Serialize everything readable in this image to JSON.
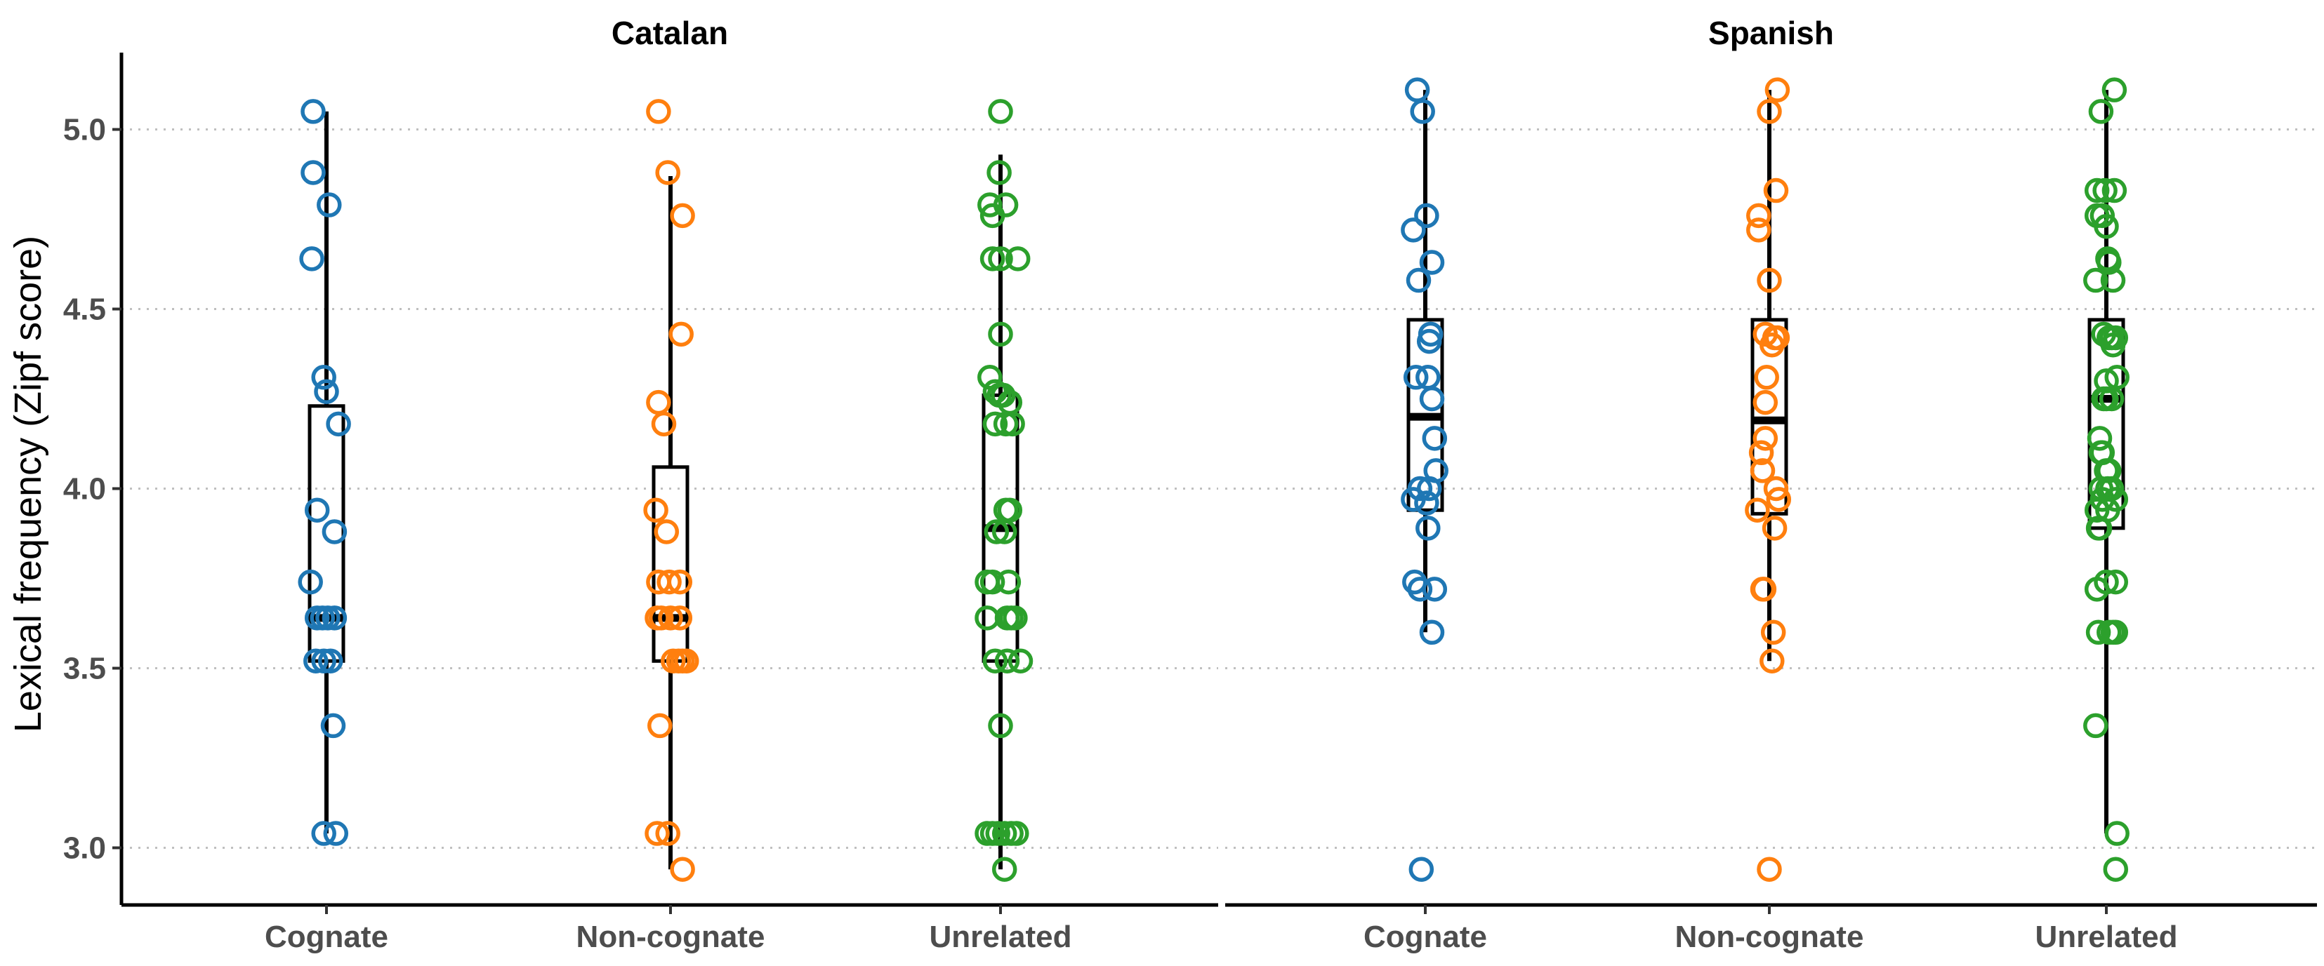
{
  "chart_data": {
    "type": "scatter",
    "ylabel": "Lexical frequency (Zipf score)",
    "ylim": [
      2.92,
      5.22
    ],
    "yticks": [
      "3.0",
      "3.5",
      "4.0",
      "4.5",
      "5.0"
    ],
    "ytick_values": [
      3.0,
      3.5,
      4.0,
      4.5,
      5.0
    ],
    "grid": "horizontal dotted",
    "categories": [
      "Cognate",
      "Non-cognate",
      "Unrelated"
    ],
    "colors": {
      "Cognate": "#1f77b4",
      "Non-cognate": "#ff7f0e",
      "Unrelated": "#2ca02c"
    },
    "facets": [
      {
        "title": "Catalan",
        "groups": [
          {
            "name": "Cognate",
            "box": {
              "min": 3.04,
              "q1": 3.52,
              "median": 3.64,
              "q3": 4.23,
              "max": 5.05
            },
            "points": [
              [
                -0.1,
                5.05
              ],
              [
                -0.1,
                4.88
              ],
              [
                0.02,
                4.79
              ],
              [
                -0.11,
                4.64
              ],
              [
                -0.02,
                4.31
              ],
              [
                0.0,
                4.27
              ],
              [
                0.09,
                4.18
              ],
              [
                -0.07,
                3.94
              ],
              [
                0.06,
                3.88
              ],
              [
                -0.12,
                3.74
              ],
              [
                -0.07,
                3.64
              ],
              [
                -0.03,
                3.64
              ],
              [
                0.01,
                3.64
              ],
              [
                0.06,
                3.64
              ],
              [
                -0.08,
                3.52
              ],
              [
                -0.02,
                3.52
              ],
              [
                0.03,
                3.52
              ],
              [
                0.05,
                3.34
              ],
              [
                -0.02,
                3.04
              ],
              [
                0.07,
                3.04
              ]
            ]
          },
          {
            "name": "Non-cognate",
            "box": {
              "min": 2.94,
              "q1": 3.52,
              "median": 3.64,
              "q3": 4.06,
              "max": 4.87
            },
            "points": [
              [
                -0.09,
                5.05
              ],
              [
                -0.02,
                4.88
              ],
              [
                0.09,
                4.76
              ],
              [
                0.08,
                4.43
              ],
              [
                -0.09,
                4.24
              ],
              [
                -0.05,
                4.18
              ],
              [
                -0.11,
                3.94
              ],
              [
                -0.03,
                3.88
              ],
              [
                -0.09,
                3.74
              ],
              [
                -0.01,
                3.74
              ],
              [
                0.07,
                3.74
              ],
              [
                -0.1,
                3.64
              ],
              [
                -0.07,
                3.64
              ],
              [
                0.0,
                3.64
              ],
              [
                0.07,
                3.64
              ],
              [
                0.02,
                3.52
              ],
              [
                0.06,
                3.52
              ],
              [
                0.09,
                3.52
              ],
              [
                0.12,
                3.52
              ],
              [
                -0.08,
                3.34
              ],
              [
                -0.1,
                3.04
              ],
              [
                -0.02,
                3.04
              ],
              [
                0.09,
                2.94
              ]
            ]
          },
          {
            "name": "Unrelated",
            "box": {
              "min": 2.94,
              "q1": 3.52,
              "median": 3.89,
              "q3": 4.26,
              "max": 4.93
            },
            "points": [
              [
                0.0,
                5.05
              ],
              [
                -0.01,
                4.88
              ],
              [
                -0.08,
                4.79
              ],
              [
                0.04,
                4.79
              ],
              [
                -0.06,
                4.76
              ],
              [
                -0.06,
                4.64
              ],
              [
                0.0,
                4.64
              ],
              [
                0.13,
                4.64
              ],
              [
                0.0,
                4.43
              ],
              [
                -0.08,
                4.31
              ],
              [
                -0.04,
                4.27
              ],
              [
                -0.01,
                4.26
              ],
              [
                0.02,
                4.26
              ],
              [
                0.07,
                4.24
              ],
              [
                -0.04,
                4.18
              ],
              [
                0.04,
                4.18
              ],
              [
                0.09,
                4.18
              ],
              [
                0.04,
                3.94
              ],
              [
                0.07,
                3.94
              ],
              [
                -0.03,
                3.88
              ],
              [
                0.03,
                3.88
              ],
              [
                -0.1,
                3.74
              ],
              [
                -0.06,
                3.74
              ],
              [
                0.06,
                3.74
              ],
              [
                -0.1,
                3.64
              ],
              [
                0.05,
                3.64
              ],
              [
                0.08,
                3.64
              ],
              [
                0.11,
                3.64
              ],
              [
                -0.04,
                3.52
              ],
              [
                0.05,
                3.52
              ],
              [
                0.15,
                3.52
              ],
              [
                0.0,
                3.34
              ],
              [
                -0.1,
                3.04
              ],
              [
                -0.06,
                3.04
              ],
              [
                -0.02,
                3.04
              ],
              [
                0.03,
                3.04
              ],
              [
                0.08,
                3.04
              ],
              [
                0.12,
                3.04
              ],
              [
                0.03,
                2.94
              ]
            ]
          }
        ]
      },
      {
        "title": "Spanish",
        "groups": [
          {
            "name": "Cognate",
            "box": {
              "min": 3.6,
              "q1": 3.94,
              "median": 4.2,
              "q3": 4.47,
              "max": 5.11
            },
            "points": [
              [
                -0.06,
                5.11
              ],
              [
                -0.02,
                5.05
              ],
              [
                0.01,
                4.76
              ],
              [
                -0.09,
                4.72
              ],
              [
                0.05,
                4.63
              ],
              [
                -0.05,
                4.58
              ],
              [
                0.04,
                4.43
              ],
              [
                0.03,
                4.41
              ],
              [
                -0.07,
                4.31
              ],
              [
                0.02,
                4.31
              ],
              [
                0.05,
                4.25
              ],
              [
                0.07,
                4.14
              ],
              [
                0.08,
                4.05
              ],
              [
                -0.04,
                4.0
              ],
              [
                0.03,
                4.0
              ],
              [
                -0.09,
                3.97
              ],
              [
                0.01,
                3.96
              ],
              [
                0.02,
                3.89
              ],
              [
                -0.08,
                3.74
              ],
              [
                -0.04,
                3.72
              ],
              [
                0.07,
                3.72
              ],
              [
                0.05,
                3.6
              ],
              [
                -0.03,
                2.94
              ]
            ]
          },
          {
            "name": "Non-cognate",
            "box": {
              "min": 3.52,
              "q1": 3.93,
              "median": 4.19,
              "q3": 4.47,
              "max": 5.11
            },
            "points": [
              [
                0.06,
                5.11
              ],
              [
                0.0,
                5.05
              ],
              [
                0.05,
                4.83
              ],
              [
                -0.08,
                4.76
              ],
              [
                -0.08,
                4.72
              ],
              [
                0.0,
                4.58
              ],
              [
                -0.03,
                4.43
              ],
              [
                0.02,
                4.4
              ],
              [
                0.04,
                4.42
              ],
              [
                0.06,
                4.42
              ],
              [
                -0.02,
                4.31
              ],
              [
                -0.03,
                4.24
              ],
              [
                -0.03,
                4.14
              ],
              [
                -0.06,
                4.1
              ],
              [
                -0.05,
                4.05
              ],
              [
                0.05,
                4.0
              ],
              [
                0.07,
                3.97
              ],
              [
                -0.09,
                3.94
              ],
              [
                0.04,
                3.89
              ],
              [
                -0.05,
                3.72
              ],
              [
                -0.04,
                3.72
              ],
              [
                0.03,
                3.6
              ],
              [
                0.02,
                3.52
              ],
              [
                0.0,
                2.94
              ]
            ]
          },
          {
            "name": "Unrelated",
            "box": {
              "min": 3.04,
              "q1": 3.89,
              "median": 4.25,
              "q3": 4.47,
              "max": 5.11
            },
            "points": [
              [
                0.06,
                5.11
              ],
              [
                -0.04,
                5.05
              ],
              [
                -0.07,
                4.83
              ],
              [
                -0.01,
                4.83
              ],
              [
                0.06,
                4.83
              ],
              [
                -0.07,
                4.76
              ],
              [
                -0.03,
                4.76
              ],
              [
                0.0,
                4.73
              ],
              [
                0.01,
                4.64
              ],
              [
                0.02,
                4.63
              ],
              [
                -0.08,
                4.58
              ],
              [
                0.05,
                4.58
              ],
              [
                -0.02,
                4.43
              ],
              [
                0.02,
                4.42
              ],
              [
                0.04,
                4.42
              ],
              [
                0.05,
                4.4
              ],
              [
                0.07,
                4.42
              ],
              [
                0.08,
                4.31
              ],
              [
                0.0,
                4.3
              ],
              [
                -0.02,
                4.25
              ],
              [
                0.0,
                4.25
              ],
              [
                0.04,
                4.25
              ],
              [
                -0.05,
                4.14
              ],
              [
                -0.04,
                4.1
              ],
              [
                -0.03,
                4.1
              ],
              [
                0.0,
                4.05
              ],
              [
                0.02,
                4.05
              ],
              [
                -0.04,
                4.0
              ],
              [
                0.01,
                4.0
              ],
              [
                0.04,
                4.0
              ],
              [
                -0.03,
                3.97
              ],
              [
                0.07,
                3.97
              ],
              [
                -0.07,
                3.94
              ],
              [
                0.01,
                3.94
              ],
              [
                -0.06,
                3.89
              ],
              [
                -0.05,
                3.89
              ],
              [
                0.0,
                3.74
              ],
              [
                0.07,
                3.74
              ],
              [
                -0.07,
                3.72
              ],
              [
                -0.06,
                3.6
              ],
              [
                0.02,
                3.6
              ],
              [
                0.05,
                3.6
              ],
              [
                0.07,
                3.6
              ],
              [
                -0.08,
                3.34
              ],
              [
                0.08,
                3.04
              ],
              [
                0.07,
                2.94
              ]
            ]
          }
        ]
      }
    ]
  }
}
